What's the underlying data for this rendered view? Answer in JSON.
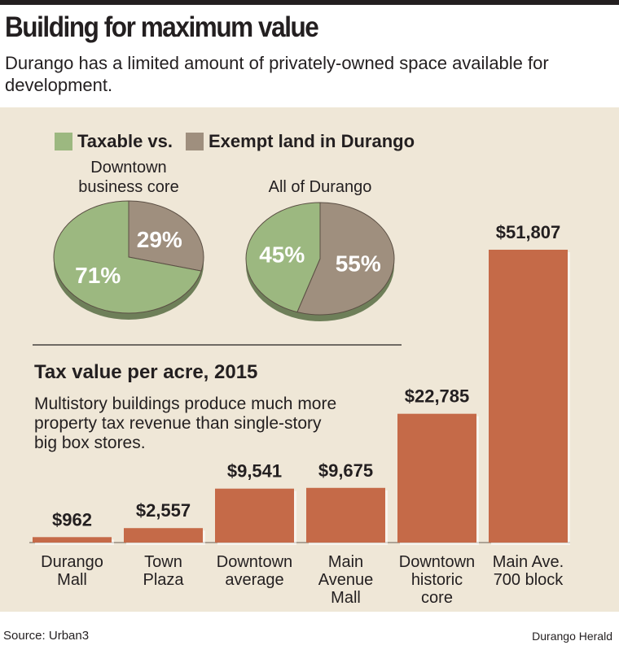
{
  "header": {
    "title": "Building for maximum value",
    "subtitle": "Durango has a limited amount of privately-owned space available for development."
  },
  "legend": {
    "taxable_label": "Taxable vs.",
    "exempt_label": "Exempt land in Durango",
    "taxable_color": "#9cb880",
    "exempt_color": "#9f8f7e"
  },
  "chart_data": [
    {
      "type": "pie",
      "title": "",
      "series": [
        {
          "name": "Downtown business core",
          "slices": [
            {
              "label": "Taxable",
              "value": 71,
              "display": "71%"
            },
            {
              "label": "Exempt",
              "value": 29,
              "display": "29%"
            }
          ]
        },
        {
          "name": "All of Durango",
          "slices": [
            {
              "label": "Taxable",
              "value": 45,
              "display": "45%"
            },
            {
              "label": "Exempt",
              "value": 55,
              "display": "55%"
            }
          ]
        }
      ]
    },
    {
      "type": "bar",
      "title": "Tax value per acre, 2015",
      "subtitle": "Multistory buildings produce much more property tax revenue than single-story big box stores.",
      "bar_color": "#c56a48",
      "categories": [
        "Durango\nMall",
        "Town\nPlaza",
        "Downtown\naverage",
        "Main\nAvenue\nMall",
        "Downtown\nhistoric\ncore",
        "Main Ave.\n700 block"
      ],
      "values": [
        962,
        2557,
        9541,
        9675,
        22785,
        51807
      ],
      "value_labels": [
        "$962",
        "$2,557",
        "$9,541",
        "$9,675",
        "$22,785",
        "$51,807"
      ],
      "ylim": [
        0,
        51807
      ]
    }
  ],
  "footer": {
    "source": "Source: Urban3",
    "credit": "Durango Herald"
  }
}
